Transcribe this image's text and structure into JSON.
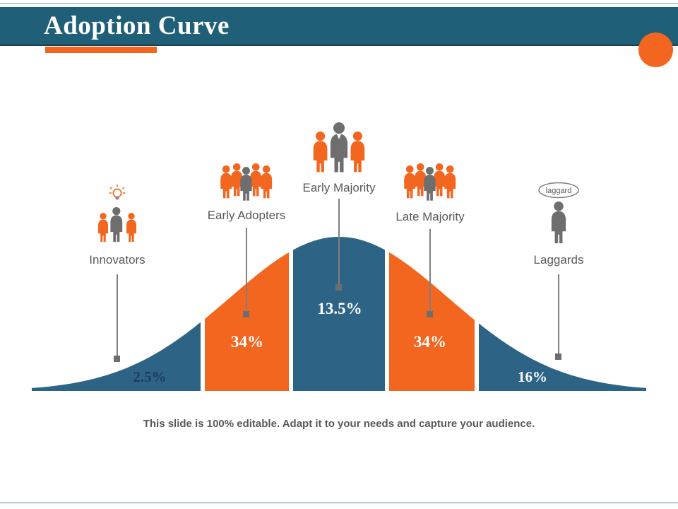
{
  "header": {
    "title": "Adoption Curve"
  },
  "groups": [
    {
      "label": "Innovators",
      "value": "2.5%"
    },
    {
      "label": "Early Adopters",
      "value": "34%"
    },
    {
      "label": "Early Majority",
      "value": "13.5%"
    },
    {
      "label": "Late Majority",
      "value": "34%"
    },
    {
      "label": "Laggards",
      "value": "16%"
    }
  ],
  "laggard_bubble_label": "laggard",
  "caption": "This slide is 100% editable. Adapt it to your needs and capture your audience.",
  "chart_data": {
    "type": "area",
    "title": "Adoption Curve",
    "categories": [
      "Innovators",
      "Early Adopters",
      "Early Majority",
      "Late Majority",
      "Laggards"
    ],
    "values": [
      2.5,
      34,
      13.5,
      34,
      16
    ],
    "unit": "%",
    "shape": "bell-curve (normal distribution) split into five colored segments",
    "segment_colors": [
      "#2d6486",
      "#f3661f",
      "#2d6486",
      "#f3661f",
      "#2d6486"
    ]
  },
  "colors": {
    "header_bg": "#1f5f78",
    "accent_orange": "#f3661f",
    "curve_blue": "#2d6486",
    "person_gray": "#6e6e6e",
    "label_text": "#595959",
    "value_navy": "#1f3864",
    "frame_line": "#aecbdb"
  }
}
